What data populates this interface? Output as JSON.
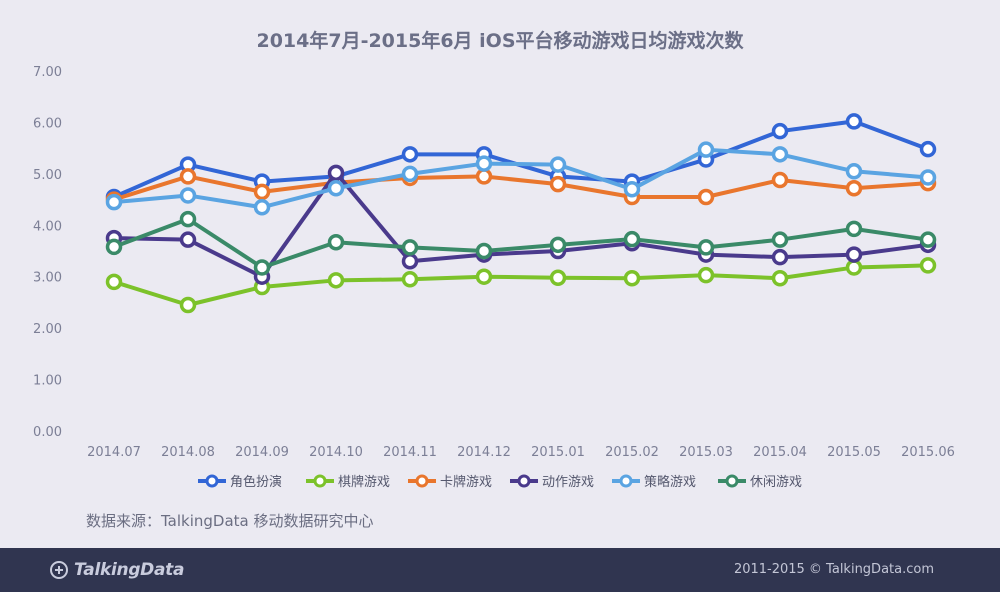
{
  "title": "2014年7月-2015年6月 iOS平台移动游戏日均游戏次数",
  "source_note": "数据来源：TalkingData 移动数据研究中心",
  "footer": {
    "logo_text": "TalkingData",
    "copyright": "2011-2015 © TalkingData.com"
  },
  "chart_data": {
    "type": "line",
    "title": "2014年7月-2015年6月 iOS平台移动游戏日均游戏次数",
    "xlabel": "",
    "ylabel": "",
    "ylim": [
      0,
      7
    ],
    "yticks": [
      "0.00",
      "1.00",
      "2.00",
      "3.00",
      "4.00",
      "5.00",
      "6.00",
      "7.00"
    ],
    "grid": false,
    "legend_position": "bottom",
    "categories": [
      "2014.07",
      "2014.08",
      "2014.09",
      "2014.10",
      "2014.11",
      "2014.12",
      "2015.01",
      "2015.02",
      "2015.03",
      "2015.04",
      "2015.05",
      "2015.06"
    ],
    "series": [
      {
        "name": "角色扮演",
        "color": "#3266d6",
        "values": [
          4.55,
          5.18,
          4.85,
          4.95,
          5.38,
          5.38,
          4.95,
          4.85,
          5.28,
          5.83,
          6.02,
          5.48
        ]
      },
      {
        "name": "棋牌游戏",
        "color": "#7cc22a",
        "values": [
          2.9,
          2.45,
          2.8,
          2.93,
          2.95,
          3.0,
          2.98,
          2.97,
          3.03,
          2.97,
          3.18,
          3.22
        ]
      },
      {
        "name": "卡牌游戏",
        "color": "#e9762d",
        "values": [
          4.5,
          4.95,
          4.65,
          4.83,
          4.92,
          4.95,
          4.8,
          4.55,
          4.55,
          4.88,
          4.72,
          4.82
        ]
      },
      {
        "name": "动作游戏",
        "color": "#4a3a8c",
        "values": [
          3.75,
          3.72,
          3.0,
          5.02,
          3.3,
          3.43,
          3.5,
          3.65,
          3.43,
          3.38,
          3.43,
          3.62
        ]
      },
      {
        "name": "策略游戏",
        "color": "#5aa4e2",
        "values": [
          4.45,
          4.58,
          4.35,
          4.72,
          5.0,
          5.2,
          5.18,
          4.7,
          5.47,
          5.38,
          5.05,
          4.93
        ]
      },
      {
        "name": "休闲游戏",
        "color": "#3a8a68",
        "values": [
          3.58,
          4.12,
          3.18,
          3.67,
          3.57,
          3.5,
          3.62,
          3.73,
          3.57,
          3.72,
          3.93,
          3.72
        ]
      }
    ]
  }
}
